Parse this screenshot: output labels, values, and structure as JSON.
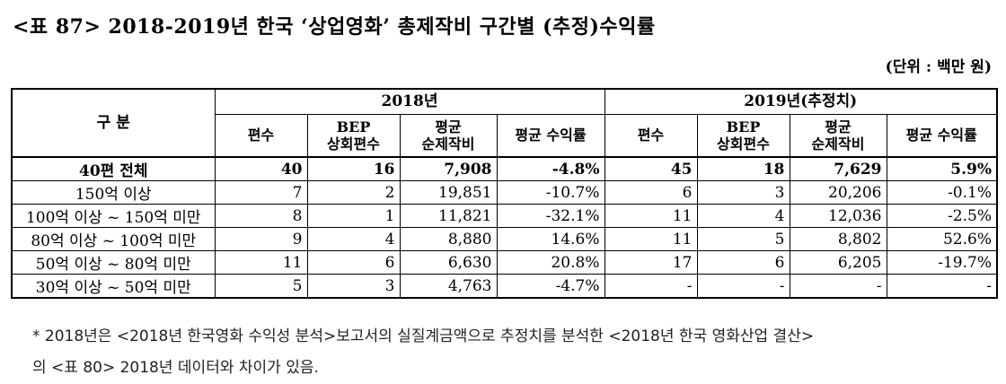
{
  "title": "<표 87> 2018-2019년 한국 ‘상업영화’ 총제작비 구간별 (추정)수익률",
  "unit": "(단위 : 백만 원)",
  "table": {
    "category_header": "구 분",
    "year1": "2018년",
    "year2": "2019년(추정치)",
    "subheaders": [
      {
        "line1": "편수",
        "line2": ""
      },
      {
        "line1": "BEP",
        "line2": "상회편수"
      },
      {
        "line1": "평균",
        "line2": "순제작비"
      },
      {
        "line1": "평균 수익률",
        "line2": ""
      },
      {
        "line1": "편수",
        "line2": ""
      },
      {
        "line1": "BEP",
        "line2": "상회편수"
      },
      {
        "line1": "평균",
        "line2": "순제작비"
      },
      {
        "line1": "평균 수익률",
        "line2": ""
      }
    ],
    "rows": [
      {
        "label": "40편 전체",
        "cells": [
          "40",
          "16",
          "7,908",
          "-4.8%",
          "45",
          "18",
          "7,629",
          "5.9%"
        ]
      },
      {
        "label": "150억 이상",
        "cells": [
          "7",
          "2",
          "19,851",
          "-10.7%",
          "6",
          "3",
          "20,206",
          "-0.1%"
        ]
      },
      {
        "label": "100억 이상 ~ 150억 미만",
        "cells": [
          "8",
          "1",
          "11,821",
          "-32.1%",
          "11",
          "4",
          "12,036",
          "-2.5%"
        ]
      },
      {
        "label": "80억 이상 ~ 100억 미만",
        "cells": [
          "9",
          "4",
          "8,880",
          "14.6%",
          "11",
          "5",
          "8,802",
          "52.6%"
        ]
      },
      {
        "label": "50억 이상 ~ 80억 미만",
        "cells": [
          "11",
          "6",
          "6,630",
          "20.8%",
          "17",
          "6",
          "6,205",
          "-19.7%"
        ]
      },
      {
        "label": "30억 이상 ~ 50억 미만",
        "cells": [
          "5",
          "3",
          "4,763",
          "-4.7%",
          "-",
          "-",
          "-",
          "-"
        ]
      }
    ]
  },
  "note": {
    "line1": "* 2018년은 <2018년 한국영화 수익성 분석>보고서의 실질계금액으로 추정치를 분석한 <2018년 한국 영화산업 결산>",
    "line2": "의 <표 80> 2018년 데이터와 차이가 있음."
  }
}
